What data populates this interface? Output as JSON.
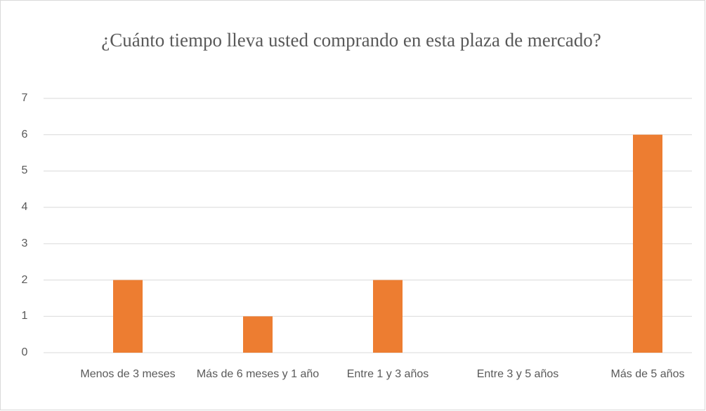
{
  "chart_data": {
    "type": "bar",
    "title": "¿Cuánto tiempo lleva usted comprando en esta plaza de mercado?",
    "categories": [
      "Menos de 3 meses",
      "Más de 6 meses y 1 año",
      "Entre 1 y 3 años",
      "Entre 3 y 5 años",
      "Más de 5 años"
    ],
    "values": [
      2,
      1,
      2,
      0,
      6
    ],
    "color": "#ed7d31",
    "ylim": [
      0,
      7
    ],
    "yticks": [
      0,
      1,
      2,
      3,
      4,
      5,
      6,
      7
    ],
    "grid": true
  }
}
